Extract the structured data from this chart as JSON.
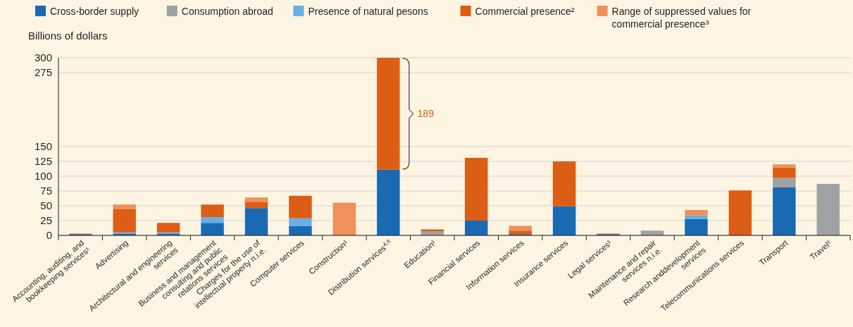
{
  "chart_data": {
    "type": "bar",
    "stacked": true,
    "ylabel": "Billions of dollars",
    "legend": "top",
    "grid": "y",
    "categories": [
      "Accounting, auditing, and bookkeeping services¹",
      "Advertising",
      "Architectural and engineering services",
      "Business and management consulting and public relations services",
      "Charges for the use of intellectual property n.i.e.",
      "Computer services",
      "Construction¹",
      "Distribution services$^{4,6}$",
      "Education¹",
      "Financial services",
      "Information services",
      "Insurance services",
      "Legal services¹",
      "Maintenance and repair services n.i.e.",
      "Research anddevelopment services",
      "Telecommunications services",
      "Transport",
      "Travel⁵"
    ],
    "series": [
      {
        "name": "Cross-border supply",
        "color": "#1a6ab3",
        "values": [
          2,
          3,
          3,
          21,
          46,
          16,
          0,
          111,
          0,
          25,
          2,
          49,
          2,
          0,
          28,
          0,
          81,
          0
        ]
      },
      {
        "name": "Consumption abroad",
        "color": "#9ea2a2",
        "values": [
          0,
          0,
          0,
          0,
          0,
          0,
          0,
          0,
          7,
          0,
          0,
          0,
          0,
          8,
          0,
          0,
          16,
          87
        ]
      },
      {
        "name": "Presence of natural pesons",
        "color": "#6aaee6",
        "values": [
          0,
          2,
          2,
          10,
          0,
          13,
          0,
          0,
          0,
          0,
          0,
          0,
          0,
          0,
          6,
          0,
          0,
          0
        ]
      },
      {
        "name": "Commercial presence²",
        "color": "#dc5e14",
        "values": [
          1,
          39,
          16,
          21,
          10,
          38,
          0,
          189,
          3,
          106,
          6,
          76,
          1,
          0,
          0,
          76,
          18,
          0
        ]
      },
      {
        "name": "Range of suppressed values for commercial presence³",
        "color": "#f0905a",
        "values": [
          0,
          8,
          0,
          0,
          8,
          0,
          55,
          0,
          0,
          0,
          8,
          0,
          0,
          0,
          9,
          0,
          5,
          0
        ]
      }
    ],
    "ylim": [
      0,
      300
    ],
    "yticks": [
      0,
      25,
      50,
      75,
      100,
      125,
      150,
      275,
      300
    ],
    "annotations": [
      "189"
    ]
  }
}
